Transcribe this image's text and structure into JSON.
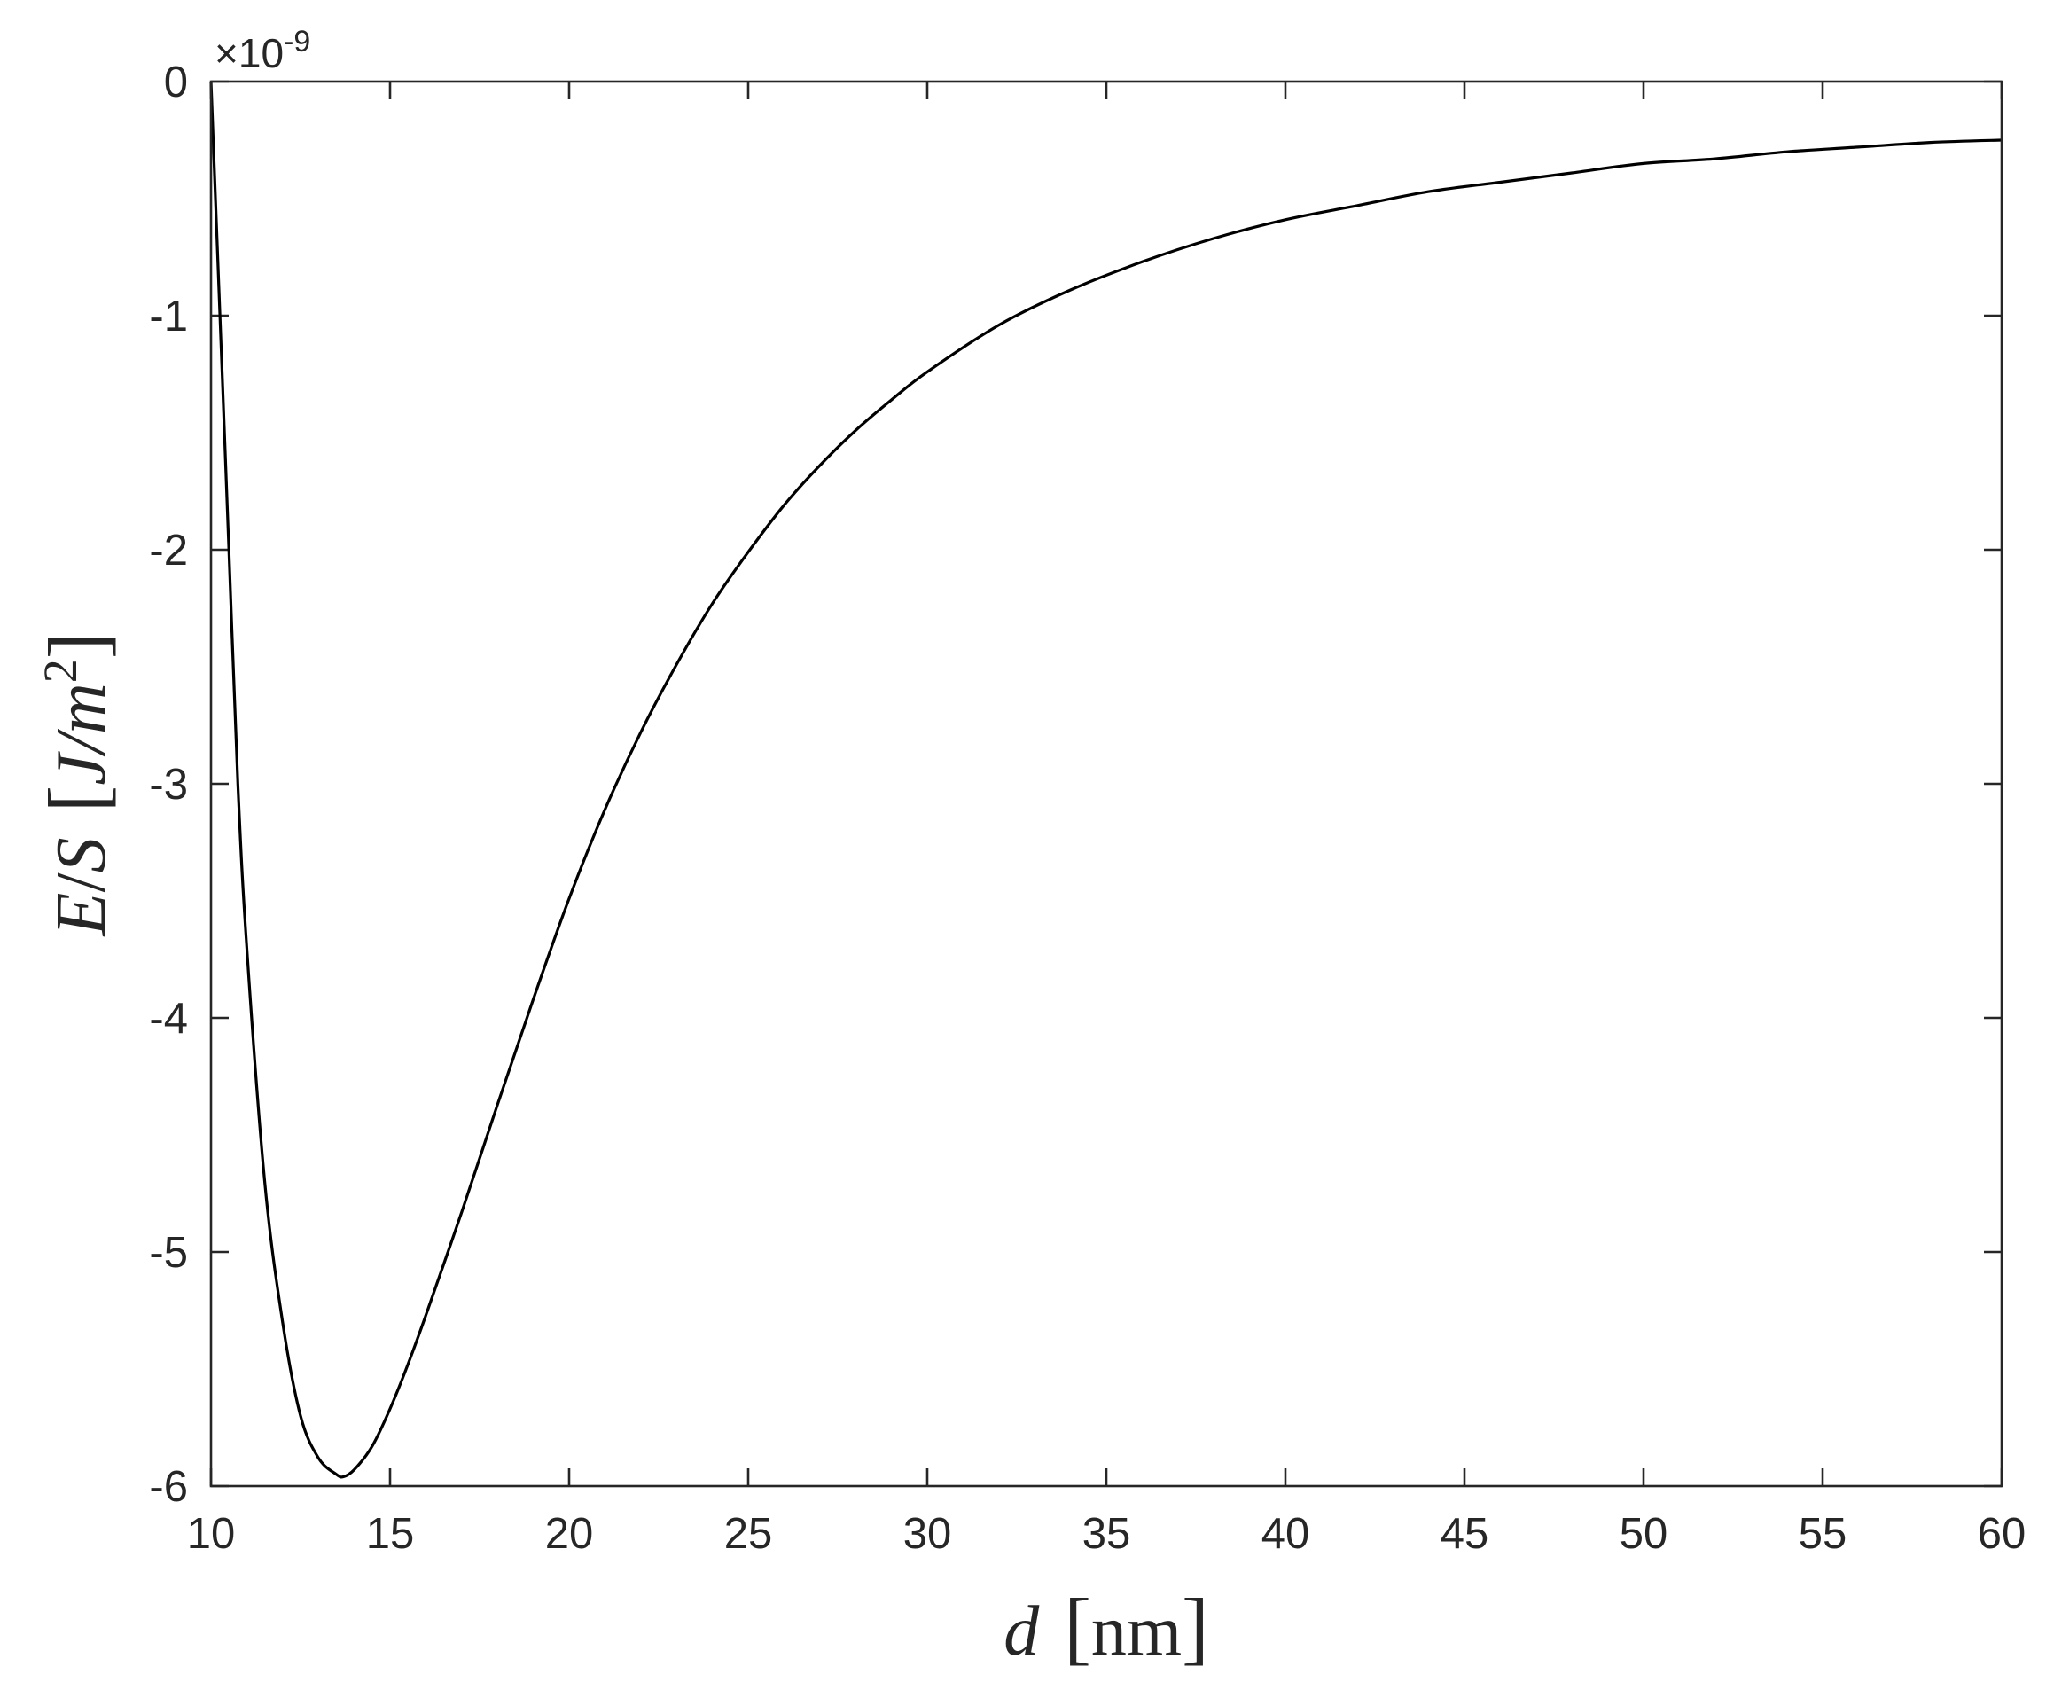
{
  "chart_data": {
    "type": "line",
    "title": "",
    "xlabel": {
      "var": "d",
      "unit": "nm",
      "left_bracket": "[",
      "right_bracket": "]"
    },
    "ylabel": {
      "numerator": "E",
      "slash": "/",
      "denominator": "S",
      "unit_base": "J/m",
      "unit_exp": "2",
      "left_bracket": "[",
      "right_bracket": "]"
    },
    "y_multiplier": {
      "prefix": "×10",
      "exponent": "-9"
    },
    "xlim": [
      10,
      60
    ],
    "ylim": [
      -6,
      0
    ],
    "xticks": [
      10,
      15,
      20,
      25,
      30,
      35,
      40,
      45,
      50,
      55,
      60
    ],
    "xtick_labels": [
      "10",
      "15",
      "20",
      "25",
      "30",
      "35",
      "40",
      "45",
      "50",
      "55",
      "60"
    ],
    "yticks": [
      0,
      -1,
      -2,
      -3,
      -4,
      -5,
      -6
    ],
    "ytick_labels": [
      "0",
      "-1",
      "-2",
      "-3",
      "-4",
      "-5",
      "-6"
    ],
    "grid": false,
    "line_color": "#000000",
    "series": [
      {
        "x": [
          10.0,
          10.25,
          10.5,
          10.75,
          11.0,
          11.5,
          12.0,
          12.5,
          13.0,
          13.5,
          13.7,
          14.0,
          14.5,
          15.0,
          15.5,
          16.0,
          17.0,
          18.0,
          19.0,
          20.0,
          21.0,
          22.0,
          23.0,
          24.0,
          25.0,
          26.0,
          27.0,
          28.0,
          29.0,
          30.0,
          32.0,
          34.0,
          36.0,
          38.0,
          40.0,
          42.0,
          44.0,
          46.0,
          48.0,
          50.0,
          52.0,
          54.0,
          56.0,
          58.0,
          60.0
        ],
        "y": [
          0.0,
          -1.0,
          -2.0,
          -3.0,
          -3.7,
          -4.7,
          -5.3,
          -5.7,
          -5.88,
          -5.95,
          -5.96,
          -5.93,
          -5.83,
          -5.67,
          -5.48,
          -5.27,
          -4.83,
          -4.37,
          -3.92,
          -3.49,
          -3.11,
          -2.78,
          -2.49,
          -2.23,
          -2.01,
          -1.81,
          -1.64,
          -1.49,
          -1.36,
          -1.24,
          -1.04,
          -0.89,
          -0.77,
          -0.67,
          -0.59,
          -0.53,
          -0.47,
          -0.43,
          -0.39,
          -0.35,
          -0.33,
          -0.3,
          -0.28,
          -0.26,
          -0.25
        ]
      }
    ]
  }
}
